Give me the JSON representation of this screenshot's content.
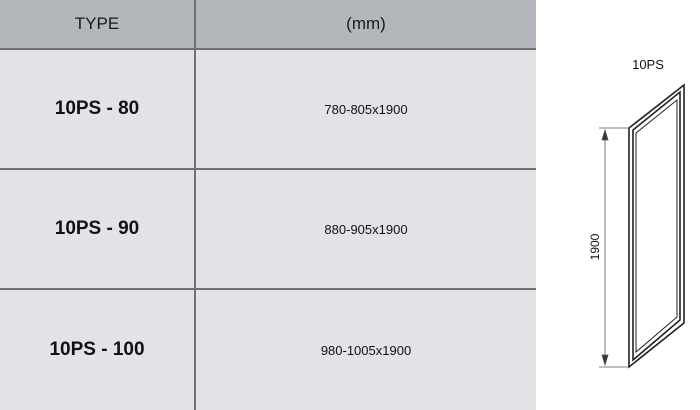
{
  "table": {
    "headers": [
      "TYPE",
      "(mm)"
    ],
    "rows": [
      {
        "type": "10PS - 80",
        "size": "780-805x1900"
      },
      {
        "type": "10PS - 90",
        "size": "880-905x1900"
      },
      {
        "type": "10PS - 100",
        "size": "980-1005x1900"
      }
    ]
  },
  "drawing": {
    "title": "10PS",
    "height_label": "1900"
  },
  "colors": {
    "header_bg": "#b3b6bb",
    "row_bg": "#e1e3e6",
    "border": "#6e7074"
  }
}
